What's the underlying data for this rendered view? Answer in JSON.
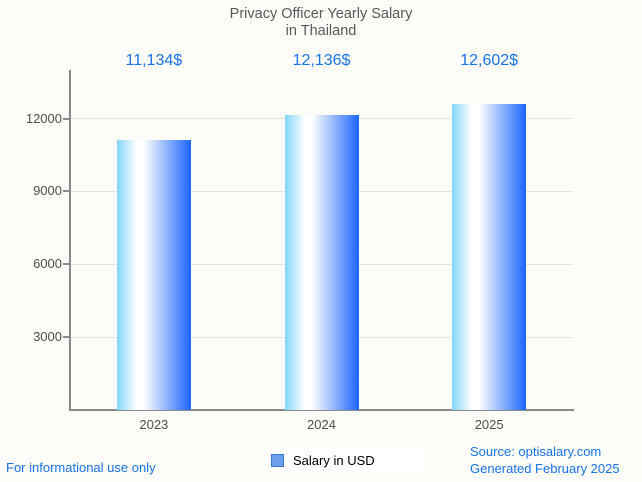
{
  "page": {
    "background": "#fcfcf8"
  },
  "chart_data": {
    "type": "bar",
    "title": "Privacy Officer Yearly Salary in Thailand",
    "title_lines": [
      "Privacy Officer Yearly Salary",
      "in Thailand"
    ],
    "categories": [
      "2023",
      "2024",
      "2025"
    ],
    "series": [
      {
        "name": "Salary in USD",
        "values": [
          11134,
          12136,
          12602
        ]
      }
    ],
    "value_labels": [
      "11,134$",
      "12,136$",
      "12,602$"
    ],
    "xlabel": "",
    "ylabel": "",
    "yticks": [
      3000,
      6000,
      9000,
      12000
    ],
    "ylim": [
      0,
      14000
    ],
    "grid": true,
    "legend_position": "bottom",
    "colors": {
      "bar_gradient": [
        "#84d5fa",
        "#ffffff",
        "#1b66fa"
      ],
      "value_label": "#1a73e8",
      "axis": "#8a8a8a",
      "gridline": "#e4e4e4",
      "tick_label": "#4f4f4f",
      "title": "#595959"
    }
  },
  "legend": {
    "label": "Salary in USD",
    "marker_fill": "#6d9eeb",
    "marker_border": "#3c78d8"
  },
  "footer": {
    "disclaimer": "For informational use only",
    "source": "Source: optisalary.com",
    "generated": "Generated February 2025",
    "link_color": "#1a73e8"
  }
}
